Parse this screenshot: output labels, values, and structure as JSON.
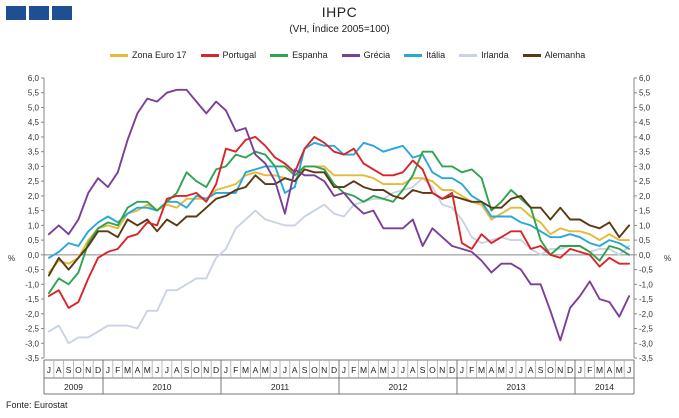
{
  "header": {
    "title": "IHPC",
    "subtitle": "(VH, Índice 2005=100)"
  },
  "footer": {
    "source": "Fonte: Eurostat"
  },
  "chart_data": {
    "type": "line",
    "y_unit_label": "%",
    "ylim": [
      -3.5,
      6.0
    ],
    "y_ticks": [
      "6,0",
      "5,5",
      "5,0",
      "4,5",
      "4,0",
      "3,5",
      "3,0",
      "2,5",
      "2,0",
      "1,5",
      "1,0",
      "0,5",
      "0,0",
      "-0,5",
      "-1,0",
      "-1,5",
      "-2,0",
      "-2,5",
      "-3,0",
      "-3,5"
    ],
    "months": [
      "J",
      "A",
      "S",
      "O",
      "N",
      "D",
      "J",
      "F",
      "M",
      "A",
      "M",
      "J",
      "J",
      "A",
      "S",
      "O",
      "N",
      "D",
      "J",
      "F",
      "M",
      "A",
      "M",
      "J",
      "J",
      "A",
      "S",
      "O",
      "N",
      "D",
      "J",
      "F",
      "M",
      "A",
      "M",
      "J",
      "J",
      "A",
      "S",
      "O",
      "N",
      "D",
      "J",
      "F",
      "M",
      "A",
      "M",
      "J",
      "J",
      "A",
      "S",
      "O",
      "N",
      "D",
      "J",
      "F",
      "M",
      "A",
      "M",
      "J"
    ],
    "years": [
      {
        "label": "2009",
        "months": 6
      },
      {
        "label": "2010",
        "months": 12
      },
      {
        "label": "2011",
        "months": 12
      },
      {
        "label": "2012",
        "months": 12
      },
      {
        "label": "2013",
        "months": 12
      },
      {
        "label": "2014",
        "months": 6
      }
    ],
    "grid": false,
    "legend_position": "top",
    "series": [
      {
        "name": "Zona Euro 17",
        "color": "#e8b938",
        "values": [
          -0.6,
          -0.2,
          -0.3,
          -0.1,
          0.5,
          0.9,
          1.0,
          0.9,
          1.4,
          1.5,
          1.7,
          1.5,
          1.7,
          1.6,
          1.9,
          1.9,
          1.9,
          2.2,
          2.3,
          2.4,
          2.7,
          2.8,
          2.7,
          2.7,
          2.6,
          2.5,
          3.0,
          3.0,
          3.0,
          2.7,
          2.7,
          2.7,
          2.7,
          2.6,
          2.4,
          2.4,
          2.4,
          2.6,
          2.6,
          2.5,
          2.2,
          2.2,
          2.0,
          1.8,
          1.7,
          1.2,
          1.4,
          1.6,
          1.6,
          1.3,
          1.1,
          0.7,
          0.9,
          0.8,
          0.8,
          0.7,
          0.5,
          0.7,
          0.5,
          0.5
        ]
      },
      {
        "name": "Portugal",
        "color": "#d7262b",
        "values": [
          -1.4,
          -1.2,
          -1.8,
          -1.6,
          -0.8,
          -0.1,
          0.1,
          0.2,
          0.6,
          0.7,
          1.1,
          1.0,
          1.9,
          2.0,
          2.0,
          2.1,
          1.8,
          2.4,
          3.6,
          3.5,
          3.9,
          4.0,
          3.7,
          3.3,
          3.1,
          2.8,
          3.6,
          4.0,
          3.8,
          3.5,
          3.4,
          3.6,
          3.1,
          2.9,
          2.7,
          2.7,
          2.8,
          3.2,
          2.9,
          2.1,
          1.9,
          2.1,
          0.4,
          0.2,
          0.7,
          0.4,
          0.6,
          0.8,
          0.8,
          0.2,
          0.3,
          0.0,
          -0.1,
          0.2,
          0.1,
          0.0,
          -0.4,
          -0.1,
          -0.3,
          -0.3
        ]
      },
      {
        "name": "Espanha",
        "color": "#2fa350",
        "values": [
          -1.3,
          -0.8,
          -1.0,
          -0.6,
          0.4,
          0.9,
          1.1,
          1.0,
          1.6,
          1.8,
          1.8,
          1.5,
          1.8,
          2.1,
          2.8,
          2.5,
          2.3,
          2.9,
          3.0,
          3.4,
          3.3,
          3.5,
          3.4,
          3.0,
          3.0,
          2.7,
          3.0,
          3.0,
          2.9,
          2.4,
          2.1,
          2.0,
          1.8,
          2.0,
          1.9,
          1.8,
          2.2,
          2.7,
          3.5,
          3.5,
          3.0,
          3.0,
          2.8,
          2.9,
          2.6,
          1.5,
          1.8,
          2.2,
          1.9,
          1.6,
          0.5,
          0.0,
          0.3,
          0.3,
          0.3,
          0.1,
          -0.2,
          0.3,
          0.2,
          0.0
        ]
      },
      {
        "name": "Grécia",
        "color": "#7b3f98",
        "values": [
          0.7,
          1.0,
          0.7,
          1.2,
          2.1,
          2.6,
          2.3,
          2.8,
          3.9,
          4.8,
          5.3,
          5.2,
          5.5,
          5.6,
          5.6,
          5.2,
          4.8,
          5.2,
          4.9,
          4.2,
          4.3,
          3.4,
          3.1,
          2.5,
          1.4,
          2.9,
          2.7,
          2.7,
          2.5,
          2.0,
          2.1,
          1.7,
          1.4,
          1.5,
          0.9,
          0.9,
          0.9,
          1.2,
          0.3,
          0.9,
          0.6,
          0.3,
          0.2,
          0.1,
          -0.2,
          -0.6,
          -0.3,
          -0.3,
          -0.5,
          -1.0,
          -1.0,
          -1.9,
          -2.9,
          -1.8,
          -1.4,
          -0.9,
          -1.5,
          -1.6,
          -2.1,
          -1.4
        ]
      },
      {
        "name": "Itália",
        "color": "#2aa7d8",
        "values": [
          -0.1,
          0.1,
          0.4,
          0.3,
          0.8,
          1.1,
          1.3,
          1.1,
          1.4,
          1.6,
          1.6,
          1.5,
          1.8,
          1.8,
          1.6,
          2.0,
          1.9,
          2.1,
          2.1,
          2.1,
          2.8,
          2.9,
          3.0,
          3.0,
          2.1,
          2.3,
          3.6,
          3.8,
          3.7,
          3.7,
          3.4,
          3.4,
          3.8,
          3.7,
          3.5,
          3.6,
          3.7,
          3.3,
          3.4,
          2.8,
          2.6,
          2.6,
          2.4,
          2.0,
          1.8,
          1.3,
          1.3,
          1.3,
          1.1,
          1.0,
          0.8,
          0.6,
          0.6,
          0.7,
          0.6,
          0.4,
          0.3,
          0.5,
          0.4,
          0.2
        ]
      },
      {
        "name": "Irlanda",
        "color": "#c9d3e3",
        "values": [
          -2.6,
          -2.4,
          -3.0,
          -2.8,
          -2.8,
          -2.6,
          -2.4,
          -2.4,
          -2.4,
          -2.5,
          -1.9,
          -1.9,
          -1.2,
          -1.2,
          -1.0,
          -0.8,
          -0.8,
          -0.1,
          0.2,
          0.9,
          1.2,
          1.5,
          1.2,
          1.1,
          1.0,
          1.0,
          1.3,
          1.5,
          1.7,
          1.4,
          1.3,
          1.7,
          1.8,
          1.9,
          1.9,
          2.1,
          2.2,
          2.3,
          2.6,
          2.3,
          1.7,
          1.6,
          1.2,
          0.6,
          0.4,
          0.5,
          0.6,
          0.5,
          0.5,
          0.2,
          0.0,
          0.2,
          0.2,
          0.3,
          0.3,
          0.1,
          0.2,
          0.2,
          0.0,
          0.3
        ]
      },
      {
        "name": "Alemanha",
        "color": "#5a3a12",
        "values": [
          -0.7,
          -0.1,
          -0.5,
          -0.1,
          0.3,
          0.8,
          0.8,
          0.6,
          1.2,
          1.0,
          1.2,
          0.8,
          1.2,
          1.0,
          1.3,
          1.3,
          1.6,
          1.9,
          2.0,
          2.2,
          2.3,
          2.7,
          2.4,
          2.4,
          2.6,
          2.5,
          2.9,
          2.8,
          2.8,
          2.3,
          2.3,
          2.5,
          2.3,
          2.2,
          2.2,
          2.0,
          1.9,
          2.2,
          2.1,
          2.1,
          1.9,
          2.0,
          1.9,
          1.8,
          1.8,
          1.6,
          1.6,
          1.9,
          2.0,
          1.6,
          1.6,
          1.2,
          1.6,
          1.2,
          1.2,
          1.0,
          0.9,
          1.1,
          0.6,
          1.0
        ]
      }
    ]
  }
}
